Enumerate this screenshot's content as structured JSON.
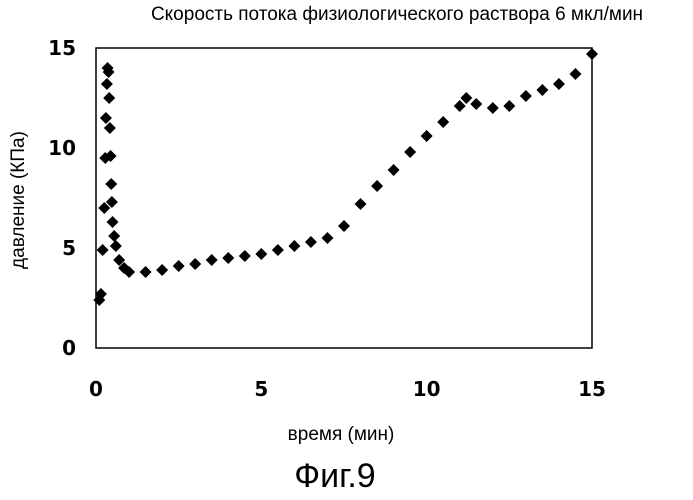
{
  "chart_data": {
    "type": "scatter",
    "title": "Скорость потока физиологического раствора 6 мкл/мин",
    "xlabel": "время (мин)",
    "ylabel": "давление (КПа)",
    "caption": "Фиг.9",
    "xlim": [
      0,
      15
    ],
    "ylim": [
      0,
      15
    ],
    "x_ticks": [
      0,
      5,
      10,
      15
    ],
    "x_tick_labels": [
      "0",
      "5",
      "10",
      "15"
    ],
    "y_ticks": [
      0,
      5,
      10,
      15
    ],
    "y_tick_labels": [
      "0",
      "5",
      "10",
      "15"
    ],
    "grid": false,
    "legend": "none",
    "marker": "diamond",
    "series": [
      {
        "color": "#000000",
        "points": [
          [
            0.1,
            2.4
          ],
          [
            0.15,
            2.7
          ],
          [
            0.2,
            4.9
          ],
          [
            0.25,
            7.0
          ],
          [
            0.28,
            9.5
          ],
          [
            0.3,
            11.5
          ],
          [
            0.33,
            13.2
          ],
          [
            0.35,
            14.0
          ],
          [
            0.38,
            13.8
          ],
          [
            0.4,
            12.5
          ],
          [
            0.42,
            11.0
          ],
          [
            0.44,
            9.6
          ],
          [
            0.46,
            8.2
          ],
          [
            0.48,
            7.3
          ],
          [
            0.5,
            6.3
          ],
          [
            0.55,
            5.6
          ],
          [
            0.6,
            5.1
          ],
          [
            0.7,
            4.4
          ],
          [
            0.85,
            4.0
          ],
          [
            1.0,
            3.8
          ],
          [
            1.5,
            3.8
          ],
          [
            2.0,
            3.9
          ],
          [
            2.5,
            4.1
          ],
          [
            3.0,
            4.2
          ],
          [
            3.5,
            4.4
          ],
          [
            4.0,
            4.5
          ],
          [
            4.5,
            4.6
          ],
          [
            5.0,
            4.7
          ],
          [
            5.5,
            4.9
          ],
          [
            6.0,
            5.1
          ],
          [
            6.5,
            5.3
          ],
          [
            7.0,
            5.5
          ],
          [
            7.5,
            6.1
          ],
          [
            8.0,
            7.2
          ],
          [
            8.5,
            8.1
          ],
          [
            9.0,
            8.9
          ],
          [
            9.5,
            9.8
          ],
          [
            10.0,
            10.6
          ],
          [
            10.5,
            11.3
          ],
          [
            11.0,
            12.1
          ],
          [
            11.2,
            12.5
          ],
          [
            11.5,
            12.2
          ],
          [
            12.0,
            12.0
          ],
          [
            12.5,
            12.1
          ],
          [
            13.0,
            12.6
          ],
          [
            13.5,
            12.9
          ],
          [
            14.0,
            13.2
          ],
          [
            14.5,
            13.7
          ],
          [
            15.0,
            14.7
          ]
        ]
      }
    ]
  }
}
